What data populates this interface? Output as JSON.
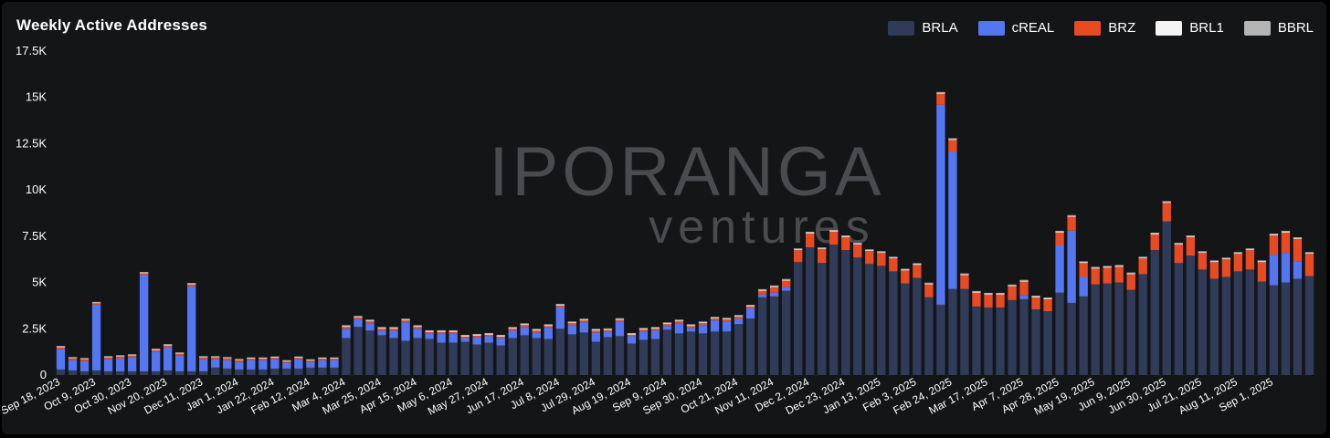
{
  "watermark": {
    "line1": "IPORANGA",
    "line2": "ventures"
  },
  "chart_data": {
    "type": "bar",
    "stacked": true,
    "title": "Weekly Active Addresses",
    "xlabel": "",
    "ylabel": "",
    "ylim": [
      0,
      17500
    ],
    "yticks": [
      0,
      2500,
      5000,
      7500,
      10000,
      12500,
      15000,
      17500
    ],
    "ytick_labels": [
      "0",
      "2.5K",
      "5K",
      "7.5K",
      "10K",
      "12.5K",
      "15K",
      "17.5K"
    ],
    "grid": false,
    "legend_position": "top-right",
    "categories": [
      "2023-09-18",
      "2023-09-25",
      "2023-10-02",
      "2023-10-09",
      "2023-10-16",
      "2023-10-23",
      "2023-10-30",
      "2023-11-06",
      "2023-11-13",
      "2023-11-20",
      "2023-11-27",
      "2023-12-04",
      "2023-12-11",
      "2023-12-18",
      "2023-12-25",
      "2024-01-01",
      "2024-01-08",
      "2024-01-15",
      "2024-01-22",
      "2024-01-29",
      "2024-02-05",
      "2024-02-12",
      "2024-02-19",
      "2024-02-26",
      "2024-03-04",
      "2024-03-11",
      "2024-03-18",
      "2024-03-25",
      "2024-04-01",
      "2024-04-08",
      "2024-04-15",
      "2024-04-22",
      "2024-04-29",
      "2024-05-06",
      "2024-05-13",
      "2024-05-20",
      "2024-05-27",
      "2024-06-03",
      "2024-06-10",
      "2024-06-17",
      "2024-06-24",
      "2024-07-01",
      "2024-07-08",
      "2024-07-15",
      "2024-07-22",
      "2024-07-29",
      "2024-08-05",
      "2024-08-12",
      "2024-08-19",
      "2024-08-26",
      "2024-09-02",
      "2024-09-09",
      "2024-09-16",
      "2024-09-23",
      "2024-09-30",
      "2024-10-07",
      "2024-10-14",
      "2024-10-21",
      "2024-10-28",
      "2024-11-04",
      "2024-11-11",
      "2024-11-18",
      "2024-11-25",
      "2024-12-02",
      "2024-12-09",
      "2024-12-16",
      "2024-12-23",
      "2024-12-30",
      "2025-01-06",
      "2025-01-13",
      "2025-01-20",
      "2025-01-27",
      "2025-02-03",
      "2025-02-10",
      "2025-02-17",
      "2025-02-24",
      "2025-03-03",
      "2025-03-10",
      "2025-03-17",
      "2025-03-24",
      "2025-03-31",
      "2025-04-07",
      "2025-04-14",
      "2025-04-21",
      "2025-04-28",
      "2025-05-05",
      "2025-05-12",
      "2025-05-19",
      "2025-05-26",
      "2025-06-02",
      "2025-06-09",
      "2025-06-16",
      "2025-06-23",
      "2025-06-30",
      "2025-07-07",
      "2025-07-14",
      "2025-07-21",
      "2025-07-28",
      "2025-08-04",
      "2025-08-11",
      "2025-08-18",
      "2025-08-25",
      "2025-09-01",
      "2025-09-08",
      "2025-09-15",
      "2025-09-22"
    ],
    "x_tick_labels": [
      {
        "index": 0,
        "label": "Sep 18, 2023"
      },
      {
        "index": 3,
        "label": "Oct 9, 2023"
      },
      {
        "index": 6,
        "label": "Oct 30, 2023"
      },
      {
        "index": 9,
        "label": "Nov 20, 2023"
      },
      {
        "index": 12,
        "label": "Dec 11, 2023"
      },
      {
        "index": 15,
        "label": "Jan 1, 2024"
      },
      {
        "index": 18,
        "label": "Jan 22, 2024"
      },
      {
        "index": 21,
        "label": "Feb 12, 2024"
      },
      {
        "index": 24,
        "label": "Mar 4, 2024"
      },
      {
        "index": 27,
        "label": "Mar 25, 2024"
      },
      {
        "index": 30,
        "label": "Apr 15, 2024"
      },
      {
        "index": 33,
        "label": "May 6, 2024"
      },
      {
        "index": 36,
        "label": "May 27, 2024"
      },
      {
        "index": 39,
        "label": "Jun 17, 2024"
      },
      {
        "index": 42,
        "label": "Jul 8, 2024"
      },
      {
        "index": 45,
        "label": "Jul 29, 2024"
      },
      {
        "index": 48,
        "label": "Aug 19, 2024"
      },
      {
        "index": 51,
        "label": "Sep 9, 2024"
      },
      {
        "index": 54,
        "label": "Sep 30, 2024"
      },
      {
        "index": 57,
        "label": "Oct 21, 2024"
      },
      {
        "index": 60,
        "label": "Nov 11, 2024"
      },
      {
        "index": 63,
        "label": "Dec 2, 2024"
      },
      {
        "index": 66,
        "label": "Dec 23, 2024"
      },
      {
        "index": 69,
        "label": "Jan 13, 2025"
      },
      {
        "index": 72,
        "label": "Feb 3, 2025"
      },
      {
        "index": 75,
        "label": "Feb 24, 2025"
      },
      {
        "index": 78,
        "label": "Mar 17, 2025"
      },
      {
        "index": 81,
        "label": "Apr 7, 2025"
      },
      {
        "index": 84,
        "label": "Apr 28, 2025"
      },
      {
        "index": 87,
        "label": "May 19, 2025"
      },
      {
        "index": 90,
        "label": "Jun 9, 2025"
      },
      {
        "index": 93,
        "label": "Jun 30, 2025"
      },
      {
        "index": 96,
        "label": "Jul 21, 2025"
      },
      {
        "index": 99,
        "label": "Aug 11, 2025"
      },
      {
        "index": 102,
        "label": "Sep 1, 2025"
      }
    ],
    "series": [
      {
        "name": "BRLA",
        "color": "#2f3b58",
        "values": [
          300,
          250,
          200,
          250,
          200,
          200,
          200,
          200,
          200,
          250,
          200,
          200,
          200,
          400,
          350,
          300,
          300,
          300,
          350,
          350,
          350,
          400,
          400,
          400,
          2000,
          2600,
          2400,
          2150,
          2000,
          1850,
          2000,
          1950,
          1750,
          1750,
          1800,
          1650,
          1750,
          1600,
          2000,
          2150,
          2000,
          1950,
          2500,
          2200,
          2300,
          1800,
          2050,
          2100,
          1700,
          1900,
          1950,
          2450,
          2250,
          2350,
          2250,
          2350,
          2350,
          2750,
          3050,
          4200,
          4250,
          4550,
          6100,
          6900,
          6050,
          7050,
          6750,
          6350,
          6000,
          5900,
          5600,
          4950,
          5250,
          4200,
          3800,
          4650,
          4650,
          3700,
          3650,
          3650,
          4050,
          4100,
          3550,
          3450,
          4450,
          3900,
          4250,
          4900,
          4950,
          5000,
          4600,
          5450,
          6750,
          8300,
          6050,
          6450,
          5700,
          5200,
          5300,
          5600,
          5700,
          5050,
          4850,
          5000,
          5200,
          5350
        ]
      },
      {
        "name": "cREAL",
        "color": "#5476f3",
        "values": [
          1100,
          550,
          550,
          3550,
          650,
          700,
          750,
          5200,
          1050,
          1250,
          850,
          4600,
          650,
          450,
          450,
          400,
          500,
          500,
          500,
          300,
          500,
          300,
          400,
          400,
          500,
          400,
          400,
          250,
          400,
          1000,
          500,
          300,
          500,
          500,
          200,
          400,
          350,
          400,
          400,
          450,
          300,
          600,
          1150,
          500,
          550,
          500,
          300,
          800,
          400,
          450,
          450,
          200,
          550,
          200,
          450,
          600,
          550,
          300,
          550,
          150,
          200,
          200,
          0,
          0,
          0,
          0,
          0,
          0,
          0,
          0,
          0,
          0,
          0,
          0,
          10800,
          7400,
          0,
          0,
          0,
          0,
          0,
          200,
          0,
          0,
          2550,
          3900,
          1050,
          0,
          0,
          0,
          0,
          0,
          0,
          0,
          0,
          0,
          0,
          0,
          0,
          0,
          0,
          0,
          1650,
          1600,
          950,
          0
        ]
      },
      {
        "name": "BRZ",
        "color": "#e84a22",
        "values": [
          100,
          100,
          100,
          80,
          100,
          100,
          100,
          100,
          100,
          100,
          100,
          100,
          100,
          100,
          100,
          100,
          80,
          80,
          80,
          80,
          80,
          80,
          80,
          80,
          100,
          100,
          100,
          100,
          100,
          100,
          100,
          80,
          80,
          80,
          80,
          80,
          80,
          80,
          100,
          100,
          100,
          100,
          100,
          100,
          100,
          100,
          80,
          80,
          80,
          100,
          100,
          100,
          100,
          100,
          100,
          100,
          100,
          100,
          100,
          200,
          300,
          350,
          650,
          750,
          750,
          700,
          700,
          700,
          700,
          700,
          700,
          700,
          700,
          700,
          600,
          650,
          750,
          750,
          700,
          700,
          750,
          750,
          650,
          650,
          700,
          750,
          750,
          850,
          850,
          850,
          850,
          850,
          850,
          1000,
          1000,
          1000,
          900,
          900,
          950,
          950,
          1050,
          1050,
          1050,
          1100,
          1200,
          1200
        ]
      },
      {
        "name": "BRL1",
        "color": "#f4f4f4",
        "values": [
          30,
          30,
          30,
          30,
          30,
          30,
          30,
          30,
          30,
          30,
          30,
          30,
          30,
          30,
          30,
          30,
          30,
          30,
          30,
          30,
          30,
          30,
          30,
          30,
          40,
          40,
          40,
          40,
          40,
          40,
          40,
          40,
          40,
          40,
          40,
          40,
          40,
          40,
          40,
          40,
          40,
          40,
          40,
          40,
          40,
          40,
          40,
          40,
          40,
          40,
          40,
          40,
          40,
          40,
          40,
          40,
          40,
          40,
          40,
          40,
          40,
          40,
          40,
          40,
          40,
          40,
          40,
          40,
          40,
          40,
          40,
          40,
          40,
          40,
          40,
          40,
          40,
          40,
          40,
          40,
          40,
          40,
          40,
          40,
          40,
          40,
          40,
          40,
          40,
          40,
          40,
          40,
          40,
          40,
          40,
          40,
          40,
          40,
          40,
          40,
          40,
          40,
          40,
          40,
          40,
          40
        ]
      },
      {
        "name": "BBRL",
        "color": "#b4b4b4",
        "values": [
          40,
          40,
          40,
          40,
          40,
          40,
          40,
          40,
          40,
          40,
          40,
          40,
          40,
          40,
          40,
          40,
          40,
          40,
          40,
          40,
          40,
          40,
          40,
          40,
          50,
          50,
          50,
          50,
          50,
          50,
          50,
          50,
          50,
          50,
          50,
          50,
          50,
          50,
          50,
          50,
          50,
          50,
          50,
          50,
          50,
          50,
          50,
          50,
          50,
          50,
          50,
          50,
          50,
          50,
          50,
          50,
          50,
          50,
          50,
          50,
          50,
          50,
          50,
          50,
          50,
          50,
          50,
          50,
          50,
          50,
          50,
          50,
          50,
          50,
          50,
          50,
          50,
          50,
          50,
          50,
          50,
          50,
          50,
          50,
          50,
          50,
          50,
          50,
          50,
          50,
          50,
          50,
          50,
          50,
          50,
          50,
          50,
          50,
          50,
          50,
          50,
          50,
          50,
          50,
          50,
          50
        ]
      }
    ]
  }
}
